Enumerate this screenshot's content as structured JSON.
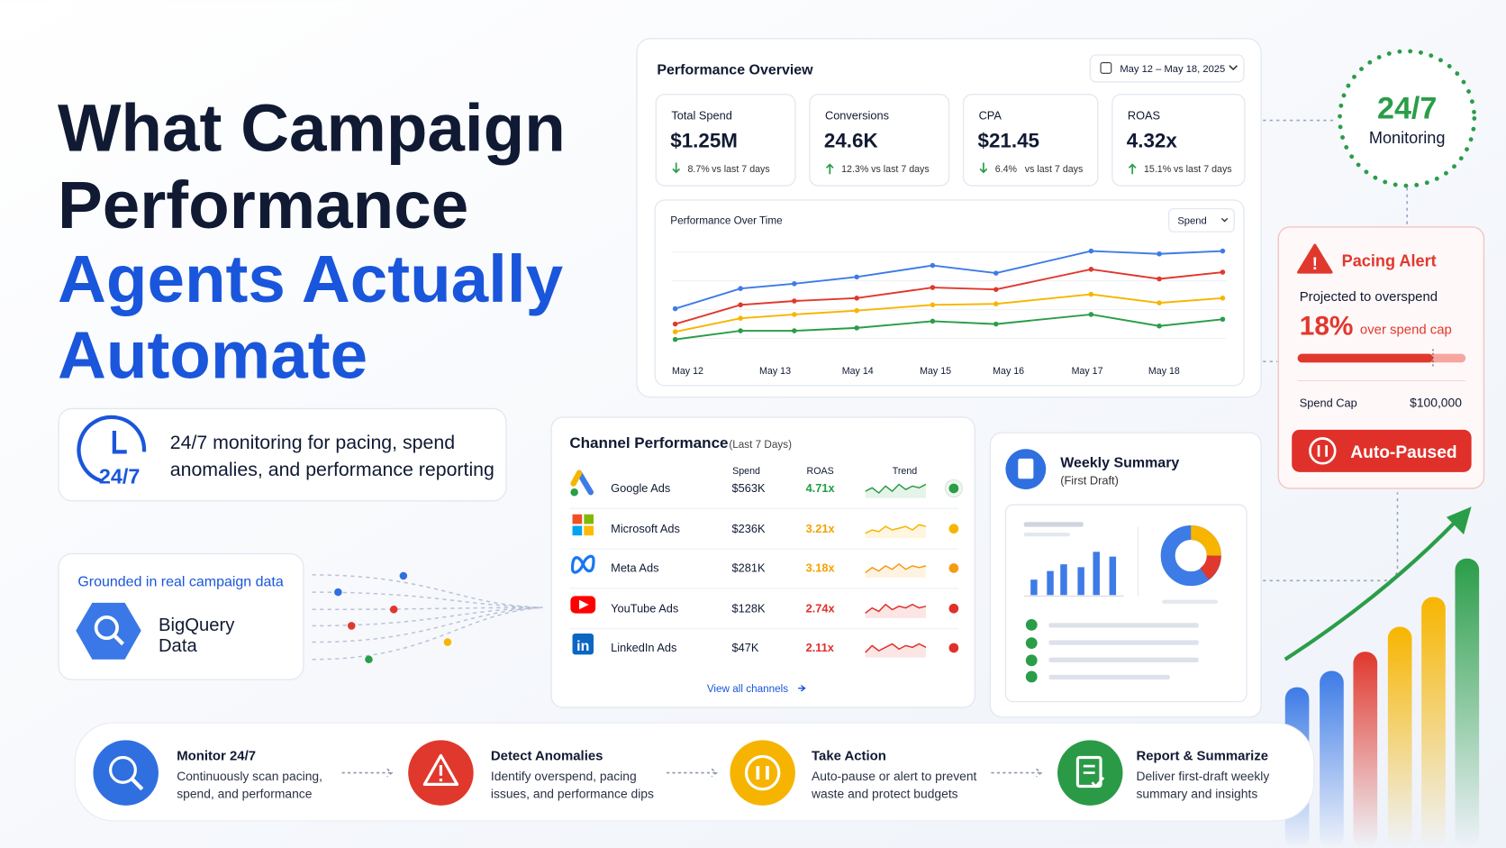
{
  "headline": {
    "line1": "What Campaign",
    "line2": "Performance",
    "line3": "Agents Actually",
    "line4": "Automate"
  },
  "monitoring_callout": {
    "badge": "24/7",
    "line1": "24/7 monitoring for pacing, spend",
    "line2": "anomalies, and performance reporting"
  },
  "data_source": {
    "label": "Grounded in real campaign data",
    "name_line1": "BigQuery",
    "name_line2": "Data"
  },
  "overview": {
    "title": "Performance Overview",
    "date_range": "May 12 – May 18, 2025",
    "kpis": [
      {
        "label": "Total Spend",
        "value": "$1.25M",
        "change": "8.7%",
        "note": "vs last 7 days"
      },
      {
        "label": "Conversions",
        "value": "24.6K",
        "change": "12.3%",
        "note": "vs last 7 days"
      },
      {
        "label": "CPA",
        "value": "$21.45",
        "change": "6.4%",
        "note": "vs last 7 days"
      },
      {
        "label": "ROAS",
        "value": "4.32x",
        "change": "15.1%",
        "note": "vs last 7 days"
      }
    ],
    "chart": {
      "title": "Performance Over Time",
      "metric": "Spend",
      "x": [
        "May 12",
        "May 13",
        "May 14",
        "May 15",
        "May 16",
        "May 17",
        "May 18"
      ]
    }
  },
  "monitoring_badge": {
    "number": "24/7",
    "label": "Monitoring"
  },
  "pacing_alert": {
    "title": "Pacing Alert",
    "subtitle": "Projected to overspend",
    "percent": "18%",
    "percent_note": "over spend cap",
    "cap_label": "Spend Cap",
    "cap_value": "$100,000",
    "action": "Auto-Paused"
  },
  "channels": {
    "title": "Channel Performance",
    "period": "(Last 7 Days)",
    "columns": [
      "Spend",
      "ROAS",
      "Trend"
    ],
    "rows": [
      {
        "name": "Google Ads",
        "spend": "$563K",
        "roas": "4.71x"
      },
      {
        "name": "Microsoft Ads",
        "spend": "$236K",
        "roas": "3.21x"
      },
      {
        "name": "Meta Ads",
        "spend": "$281K",
        "roas": "3.18x"
      },
      {
        "name": "YouTube Ads",
        "spend": "$128K",
        "roas": "2.74x"
      },
      {
        "name": "LinkedIn Ads",
        "spend": "$47K",
        "roas": "2.11x"
      }
    ],
    "link": "View all channels"
  },
  "weekly_summary": {
    "title": "Weekly Summary",
    "subtitle": "(First Draft)"
  },
  "steps": [
    {
      "title": "Monitor 24/7",
      "line1": "Continuously scan pacing,",
      "line2": "spend, and performance"
    },
    {
      "title": "Detect Anomalies",
      "line1": "Identify overspend, pacing",
      "line2": "issues, and performance dips"
    },
    {
      "title": "Take Action",
      "line1": "Auto-pause or alert to prevent",
      "line2": "waste and protect budgets"
    },
    {
      "title": "Report & Summarize",
      "line1": "Deliver first-draft weekly",
      "line2": "summary and insights"
    }
  ]
}
